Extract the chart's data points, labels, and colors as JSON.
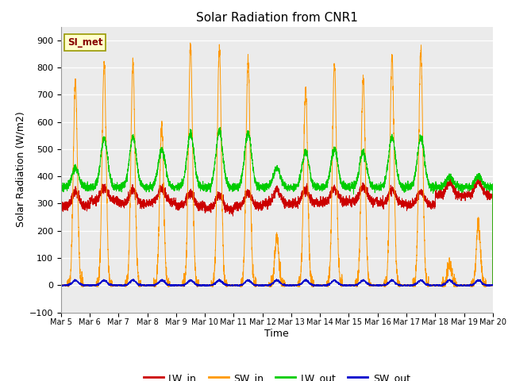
{
  "title": "Solar Radiation from CNR1",
  "xlabel": "Time",
  "ylabel": "Solar Radiation (W/m2)",
  "ylim": [
    -100,
    950
  ],
  "yticks": [
    -100,
    0,
    100,
    200,
    300,
    400,
    500,
    600,
    700,
    800,
    900
  ],
  "xtick_labels": [
    "Mar 5",
    "Mar 6",
    "Mar 7",
    "Mar 8",
    "Mar 9",
    "Mar 10",
    "Mar 11",
    "Mar 12",
    "Mar 13",
    "Mar 14",
    "Mar 15",
    "Mar 16",
    "Mar 17",
    "Mar 18",
    "Mar 19",
    "Mar 20"
  ],
  "annotation_text": "SI_met",
  "colors": {
    "LW_in": "#cc0000",
    "SW_in": "#ff9900",
    "LW_out": "#00cc00",
    "SW_out": "#0000cc"
  },
  "plot_bg_color": "#ebebeb",
  "fig_bg_color": "#ffffff",
  "n_days": 15,
  "points_per_day": 288
}
